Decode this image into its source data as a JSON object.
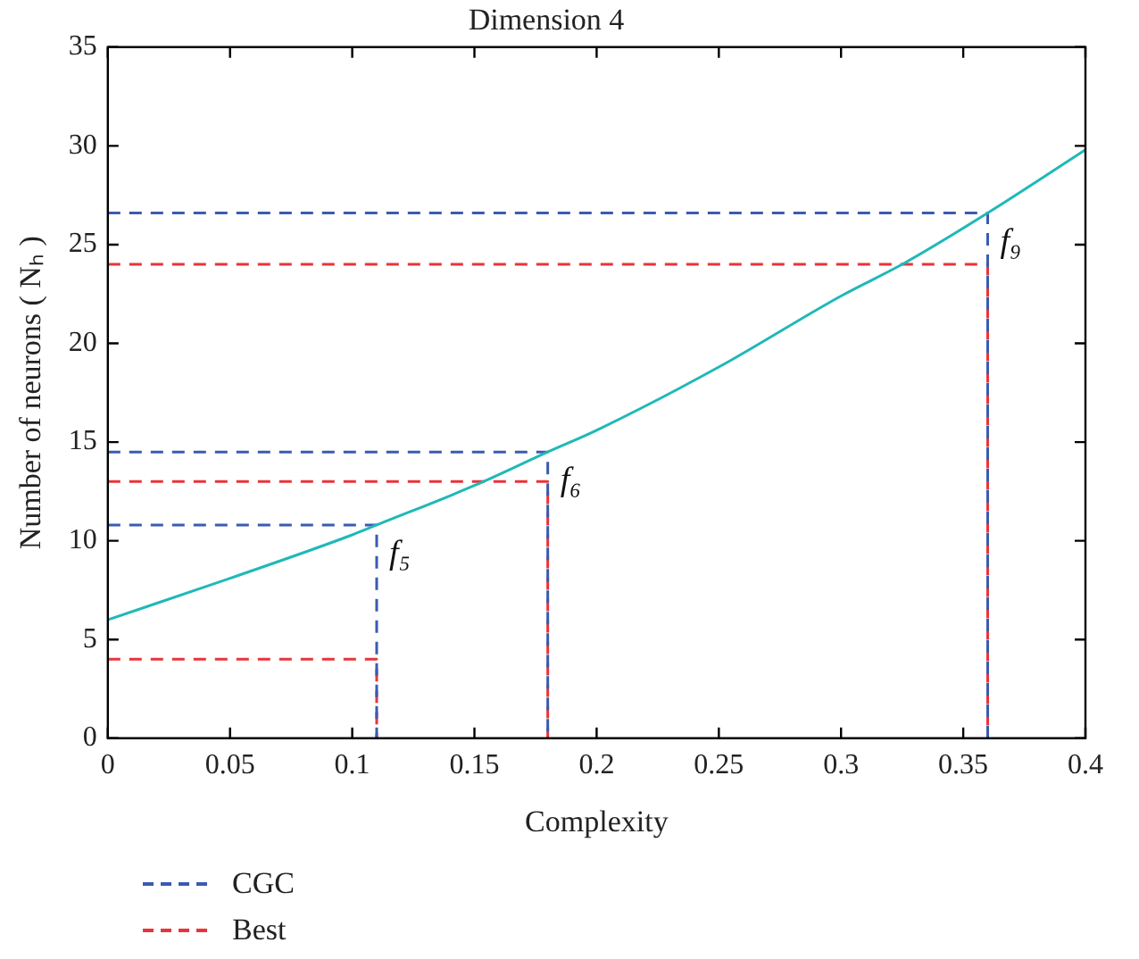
{
  "chart_data": {
    "type": "line",
    "title": "Dimension 4",
    "xlabel": "Complexity",
    "ylabel": "Number of neurons ( Nₕ )",
    "xlim": [
      0,
      0.4
    ],
    "xticks": [
      0,
      0.05,
      0.1,
      0.15,
      0.2,
      0.25,
      0.3,
      0.35,
      0.4
    ],
    "ylim": [
      0,
      35
    ],
    "yticks": [
      0,
      5,
      10,
      15,
      20,
      25,
      30,
      35
    ],
    "grid": false,
    "legend": "bottom left",
    "marker": "none",
    "series": [
      {
        "color": "#20b8b8",
        "line_style": "solid",
        "x": [
          0,
          0.05,
          0.1,
          0.11,
          0.15,
          0.18,
          0.2,
          0.25,
          0.3,
          0.325,
          0.36,
          0.4
        ],
        "values": [
          6,
          8.1,
          10.3,
          10.8,
          12.8,
          14.5,
          15.6,
          18.8,
          22.4,
          24,
          26.6,
          29.8
        ]
      },
      {
        "name": "CGC",
        "color": "#3a5bb0",
        "line_style": "dashed",
        "x": [
          0,
          0.11,
          0.11,
          null,
          0,
          0.18,
          0.18,
          null,
          0,
          0.36,
          0.36
        ],
        "values": [
          10.8,
          10.8,
          0,
          null,
          14.5,
          14.5,
          0,
          null,
          26.6,
          26.6,
          0
        ]
      },
      {
        "name": "Best",
        "color": "#e8343a",
        "line_style": "dashed",
        "x": [
          0,
          0.11,
          0.11,
          null,
          0,
          0.18,
          0.18,
          null,
          0,
          0.36,
          0.36
        ],
        "values": [
          4,
          4,
          0,
          null,
          13,
          13,
          0,
          null,
          24,
          24,
          0
        ]
      }
    ],
    "annotations": [
      {
        "text": "f₅",
        "x": 0.11,
        "y": 10.8
      },
      {
        "text": "f₆",
        "x": 0.18,
        "y": 14.5
      },
      {
        "text": "f₉",
        "x": 0.36,
        "y": 26.6
      }
    ]
  }
}
